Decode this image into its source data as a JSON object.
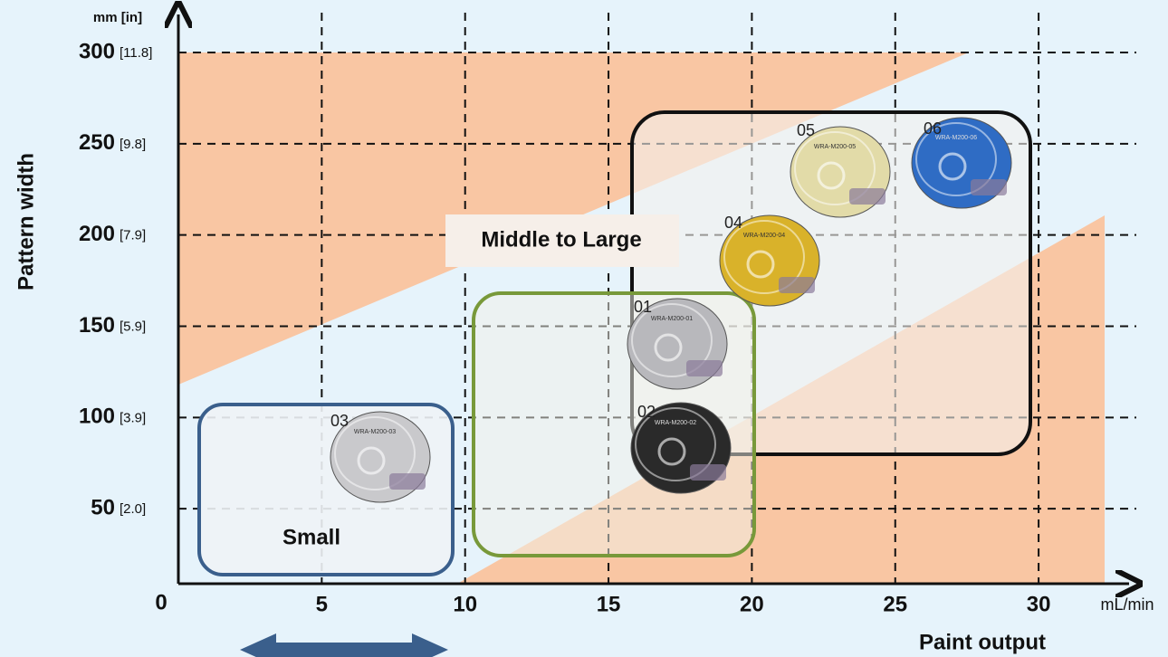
{
  "chart_data": {
    "type": "region",
    "x_title": "Paint output",
    "x_unit": "mL/min",
    "y_title": "Pattern width",
    "y_unit": "mm [in]",
    "origin": "0",
    "xlim": [
      0,
      33
    ],
    "ylim": [
      0,
      300
    ],
    "xticks": [
      5,
      10,
      15,
      20,
      25,
      30
    ],
    "yticks": [
      50,
      100,
      150,
      200,
      250,
      300
    ],
    "yticks_in": [
      "[2.0]",
      "[3.9]",
      "[5.9]",
      "[7.9]",
      "[9.8]",
      "[11.8]"
    ],
    "grid": true
  },
  "regions": [
    "Small",
    "Middle to Large"
  ],
  "nozzles": [
    {
      "label": "03",
      "model": "WRA-M200-03",
      "color": "#c9c9cc"
    },
    {
      "label": "01",
      "model": "WRA-M200-01",
      "color": "#b8b8bc"
    },
    {
      "label": "02",
      "model": "WRA-M200-02",
      "color": "#2a2a2a"
    },
    {
      "label": "04",
      "model": "WRA-M200-04",
      "color": "#d9b22a"
    },
    {
      "label": "05",
      "model": "WRA-M200-05",
      "color": "#e2dba8"
    },
    {
      "label": "06",
      "model": "WRA-M200-06",
      "color": "#2f6cc4"
    }
  ]
}
